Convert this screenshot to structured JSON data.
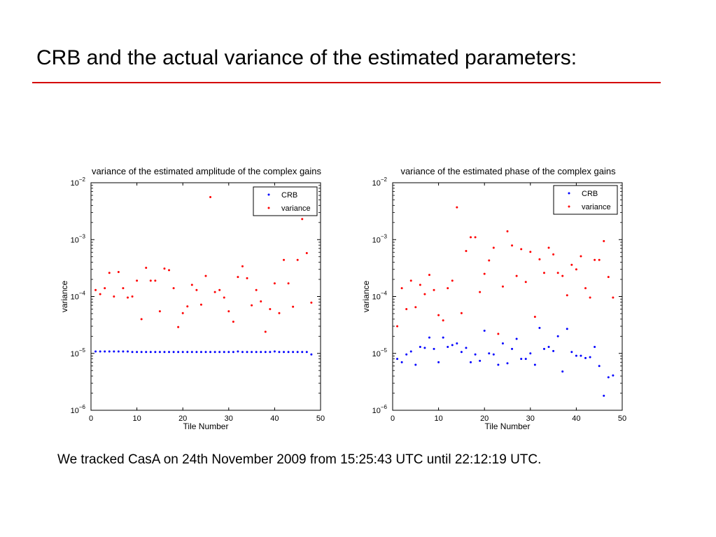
{
  "slide": {
    "title": "CRB and the actual variance of the estimated parameters:",
    "caption": "We tracked CasA on 24th November 2009 from 15:25:43 UTC until 22:12:19 UTC."
  },
  "colors": {
    "rule": "#d40000",
    "crb": "#0000ff",
    "variance": "#ff0000"
  },
  "chart_data": [
    {
      "type": "scatter",
      "title": "variance of the estimated amplitude of the complex gains",
      "xlabel": "Tile Number",
      "ylabel": "variance",
      "xlim": [
        0,
        50
      ],
      "ylim": [
        1e-06,
        0.01
      ],
      "yscale": "log",
      "xticks": [
        0,
        10,
        20,
        30,
        40,
        50
      ],
      "yticks": [
        1e-06,
        1e-05,
        0.0001,
        0.001,
        0.01
      ],
      "legend_position": "top-right",
      "series": [
        {
          "name": "CRB",
          "color": "#0000ff",
          "x": [
            1,
            2,
            3,
            4,
            5,
            6,
            7,
            8,
            9,
            10,
            11,
            12,
            13,
            14,
            15,
            16,
            17,
            18,
            19,
            20,
            21,
            22,
            23,
            24,
            25,
            26,
            27,
            28,
            29,
            30,
            31,
            32,
            33,
            34,
            35,
            36,
            37,
            38,
            39,
            40,
            41,
            42,
            43,
            44,
            45,
            46,
            47,
            48
          ],
          "y": [
            1.08e-05,
            1.08e-05,
            1.08e-05,
            1.08e-05,
            1.08e-05,
            1.08e-05,
            1.08e-05,
            1.08e-05,
            1.06e-05,
            1.06e-05,
            1.06e-05,
            1.06e-05,
            1.06e-05,
            1.06e-05,
            1.06e-05,
            1.06e-05,
            1.06e-05,
            1.06e-05,
            1.06e-05,
            1.06e-05,
            1.06e-05,
            1.06e-05,
            1.06e-05,
            1.06e-05,
            1.06e-05,
            1.06e-05,
            1.06e-05,
            1.06e-05,
            1.06e-05,
            1.06e-05,
            1.06e-05,
            1.08e-05,
            1.06e-05,
            1.06e-05,
            1.06e-05,
            1.06e-05,
            1.06e-05,
            1.06e-05,
            1.06e-05,
            1.08e-05,
            1.06e-05,
            1.06e-05,
            1.06e-05,
            1.06e-05,
            1.06e-05,
            1.06e-05,
            1.06e-05,
            9.6e-06
          ]
        },
        {
          "name": "variance",
          "color": "#ff0000",
          "x": [
            1,
            2,
            3,
            4,
            5,
            6,
            7,
            8,
            9,
            10,
            11,
            12,
            13,
            14,
            15,
            16,
            17,
            18,
            19,
            20,
            21,
            22,
            23,
            24,
            25,
            26,
            27,
            28,
            29,
            30,
            31,
            32,
            33,
            34,
            35,
            36,
            37,
            38,
            39,
            40,
            41,
            42,
            43,
            44,
            45,
            46,
            47,
            48
          ],
          "y": [
            0.00013,
            0.00011,
            0.00014,
            0.00026,
            0.0001,
            0.00027,
            0.00014,
            9.6e-05,
            0.0001,
            0.00019,
            4e-05,
            0.00032,
            0.00019,
            0.00019,
            5.5e-05,
            0.00031,
            0.00029,
            0.00014,
            2.9e-05,
            5.1e-05,
            6.7e-05,
            0.00016,
            0.00013,
            7.2e-05,
            0.00023,
            0.0056,
            0.00012,
            0.00013,
            9.6e-05,
            5.5e-05,
            3.6e-05,
            0.00022,
            0.00034,
            0.00021,
            7e-05,
            0.00013,
            8.2e-05,
            2.4e-05,
            6e-05,
            0.00017,
            5.1e-05,
            0.00044,
            0.00017,
            6.6e-05,
            0.00044,
            0.0023,
            0.00058,
            7.8e-05
          ]
        }
      ]
    },
    {
      "type": "scatter",
      "title": "variance of the estimated phase of the complex gains",
      "xlabel": "Tile Number",
      "ylabel": "variance",
      "xlim": [
        0,
        50
      ],
      "ylim": [
        1e-06,
        0.01
      ],
      "yscale": "log",
      "xticks": [
        0,
        10,
        20,
        30,
        40,
        50
      ],
      "yticks": [
        1e-06,
        1e-05,
        0.0001,
        0.001,
        0.01
      ],
      "legend_position": "top-right",
      "series": [
        {
          "name": "CRB",
          "color": "#0000ff",
          "x": [
            1,
            2,
            3,
            4,
            5,
            6,
            7,
            8,
            9,
            10,
            11,
            12,
            13,
            14,
            15,
            16,
            17,
            18,
            19,
            20,
            21,
            22,
            23,
            24,
            25,
            26,
            27,
            28,
            29,
            30,
            31,
            32,
            33,
            34,
            35,
            36,
            37,
            38,
            39,
            40,
            41,
            42,
            43,
            44,
            45,
            46,
            47,
            48
          ],
          "y": [
            8e-06,
            7e-06,
            9.6e-06,
            1.08e-05,
            6.3e-06,
            1.3e-05,
            1.25e-05,
            1.9e-05,
            1.2e-05,
            7e-06,
            1.9e-05,
            1.3e-05,
            1.4e-05,
            1.5e-05,
            1.06e-05,
            1.25e-05,
            7e-06,
            9.6e-06,
            7.4e-06,
            2.5e-05,
            1e-05,
            9.6e-06,
            6.3e-06,
            1.5e-05,
            6.7e-06,
            1.2e-05,
            1.8e-05,
            8e-06,
            8e-06,
            1e-05,
            6.3e-06,
            2.8e-05,
            1.2e-05,
            1.3e-05,
            1.1e-05,
            2e-05,
            4.8e-06,
            2.7e-05,
            1.06e-05,
            9.1e-06,
            9.1e-06,
            8.3e-06,
            8.6e-06,
            1.3e-05,
            6e-06,
            1.8e-06,
            3.8e-06,
            4.1e-06
          ]
        },
        {
          "name": "variance",
          "color": "#ff0000",
          "x": [
            1,
            2,
            3,
            4,
            5,
            6,
            7,
            8,
            9,
            10,
            11,
            12,
            13,
            14,
            15,
            16,
            17,
            18,
            19,
            20,
            21,
            22,
            23,
            24,
            25,
            26,
            27,
            28,
            29,
            30,
            31,
            32,
            33,
            34,
            35,
            36,
            37,
            38,
            39,
            40,
            41,
            42,
            43,
            44,
            45,
            46,
            47,
            48
          ],
          "y": [
            3e-05,
            0.00014,
            6e-05,
            0.00019,
            6.5e-05,
            0.00016,
            0.00011,
            0.00024,
            0.00013,
            4.7e-05,
            3.8e-05,
            0.00014,
            0.00019,
            0.0037,
            5.1e-05,
            0.00063,
            0.0011,
            0.0011,
            0.00012,
            0.00025,
            0.00043,
            0.00072,
            2.2e-05,
            0.00015,
            0.0014,
            0.00079,
            0.00023,
            0.00068,
            0.00018,
            0.00061,
            4.4e-05,
            0.00045,
            0.00026,
            0.00072,
            0.00055,
            0.00026,
            0.00023,
            0.000105,
            0.00036,
            0.0003,
            0.00051,
            0.00014,
            9.6e-05,
            0.00044,
            0.00044,
            0.00094,
            0.00022,
            9.6e-05
          ]
        }
      ]
    }
  ]
}
